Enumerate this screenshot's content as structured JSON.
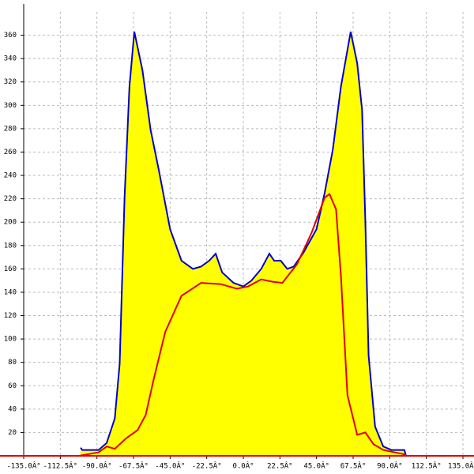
{
  "chart_data": {
    "type": "area",
    "xlim": [
      -135,
      135
    ],
    "ylim": [
      0,
      380
    ],
    "xticks": [
      {
        "value": -135,
        "label": "-135.0Â°"
      },
      {
        "value": -112.5,
        "label": "-112.5Â°"
      },
      {
        "value": -90,
        "label": "-90.0Â°"
      },
      {
        "value": -67.5,
        "label": "-67.5Â°"
      },
      {
        "value": -45,
        "label": "-45.0Â°"
      },
      {
        "value": -22.5,
        "label": "-22.5Â°"
      },
      {
        "value": 0,
        "label": "0.0Â°"
      },
      {
        "value": 22.5,
        "label": "22.5Â°"
      },
      {
        "value": 45,
        "label": "45.0Â°"
      },
      {
        "value": 67.5,
        "label": "67.5Â°"
      },
      {
        "value": 90,
        "label": "90.0Â°"
      },
      {
        "value": 112.5,
        "label": "112.5Â°"
      },
      {
        "value": 135,
        "label": "135.0Â°"
      }
    ],
    "yticks": [
      20,
      40,
      60,
      80,
      100,
      120,
      140,
      160,
      180,
      200,
      220,
      240,
      260,
      280,
      300,
      320,
      340,
      360
    ],
    "grid": true,
    "series": [
      {
        "color": "#0000cc",
        "fill": "#ffff00",
        "x": [
          -100,
          -99,
          -89,
          -84,
          -79,
          -76,
          -73,
          -70,
          -67,
          -62,
          -57,
          -52,
          -45,
          -38,
          -31,
          -26,
          -21,
          -17,
          -13,
          -6,
          0,
          5,
          11,
          16,
          19,
          23,
          27,
          31,
          37,
          45,
          50,
          55,
          60,
          66,
          70,
          73,
          75,
          77,
          81,
          86,
          91,
          99,
          100
        ],
        "values": [
          7,
          5,
          5,
          11,
          32,
          79,
          221,
          316,
          363,
          330,
          279,
          245,
          194,
          167,
          160,
          162,
          167,
          173,
          157,
          148,
          145,
          150,
          160,
          173,
          167,
          167,
          160,
          162,
          174,
          194,
          225,
          262,
          316,
          363,
          336,
          296,
          201,
          86,
          25,
          8,
          5,
          5,
          0
        ]
      },
      {
        "color": "#e00000",
        "x": [
          -101,
          -89,
          -84,
          -79,
          -72,
          -65,
          -60,
          -55,
          -48,
          -38,
          -26,
          -14,
          -4,
          3,
          11,
          18,
          24,
          33,
          42,
          50,
          53,
          57,
          60,
          64,
          70,
          75,
          80,
          86,
          93,
          100
        ],
        "values": [
          0,
          3,
          8,
          6,
          15,
          22,
          35,
          66,
          106,
          137,
          148,
          147,
          143,
          145,
          151,
          149,
          148,
          164,
          191,
          221,
          224,
          211,
          154,
          52,
          18,
          20,
          10,
          5,
          3,
          1
        ]
      }
    ]
  }
}
